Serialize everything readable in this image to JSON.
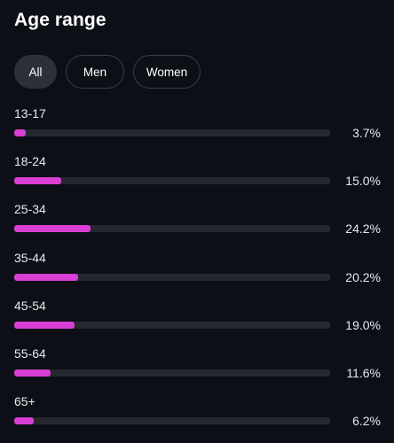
{
  "header": {
    "title": "Age range"
  },
  "filters": {
    "all": "All",
    "men": "Men",
    "women": "Women",
    "selected": "All"
  },
  "colors": {
    "bar_fill": "#d93ed5",
    "track": "#262830",
    "background": "#0d0f16"
  },
  "age_rows": [
    {
      "label": "13-17",
      "percent_text": "3.7%",
      "value": 3.7
    },
    {
      "label": "18-24",
      "percent_text": "15.0%",
      "value": 15.0
    },
    {
      "label": "25-34",
      "percent_text": "24.2%",
      "value": 24.2
    },
    {
      "label": "35-44",
      "percent_text": "20.2%",
      "value": 20.2
    },
    {
      "label": "45-54",
      "percent_text": "19.0%",
      "value": 19.0
    },
    {
      "label": "55-64",
      "percent_text": "11.6%",
      "value": 11.6
    },
    {
      "label": "65+",
      "percent_text": "6.2%",
      "value": 6.2
    }
  ]
}
